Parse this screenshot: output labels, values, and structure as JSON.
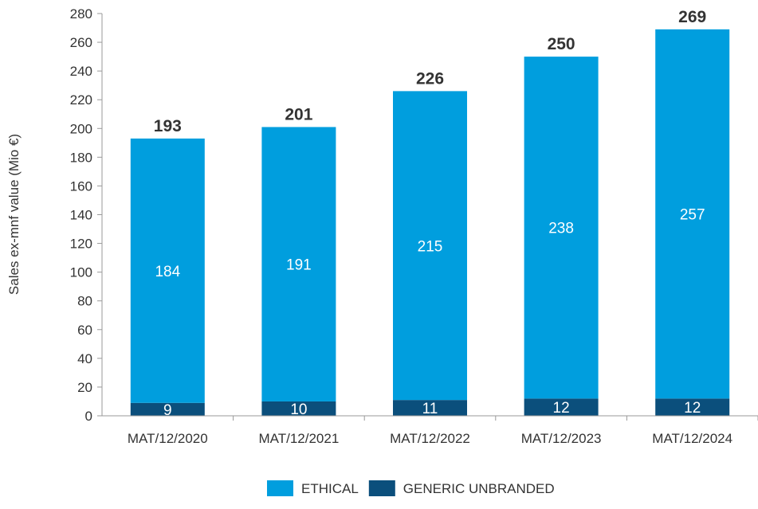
{
  "chart_data": {
    "type": "bar",
    "stacked": true,
    "title": "",
    "xlabel": "",
    "ylabel": "Sales ex-mnf value (Mio €)",
    "ylim": [
      0,
      280
    ],
    "yticks": [
      0,
      20,
      40,
      60,
      80,
      100,
      120,
      140,
      160,
      180,
      200,
      220,
      240,
      260,
      280
    ],
    "grid": false,
    "legend_position": "bottom",
    "categories": [
      "MAT/12/2020",
      "MAT/12/2021",
      "MAT/12/2022",
      "MAT/12/2023",
      "MAT/12/2024"
    ],
    "series": [
      {
        "name": "GENERIC UNBRANDED",
        "values": [
          9,
          10,
          11,
          12,
          12
        ],
        "color": "#0b4f7c"
      },
      {
        "name": "ETHICAL",
        "values": [
          184,
          191,
          215,
          238,
          257
        ],
        "color": "#009ede"
      }
    ],
    "totals": [
      193,
      201,
      226,
      250,
      269
    ],
    "legend_order": [
      "ETHICAL",
      "GENERIC UNBRANDED"
    ]
  }
}
